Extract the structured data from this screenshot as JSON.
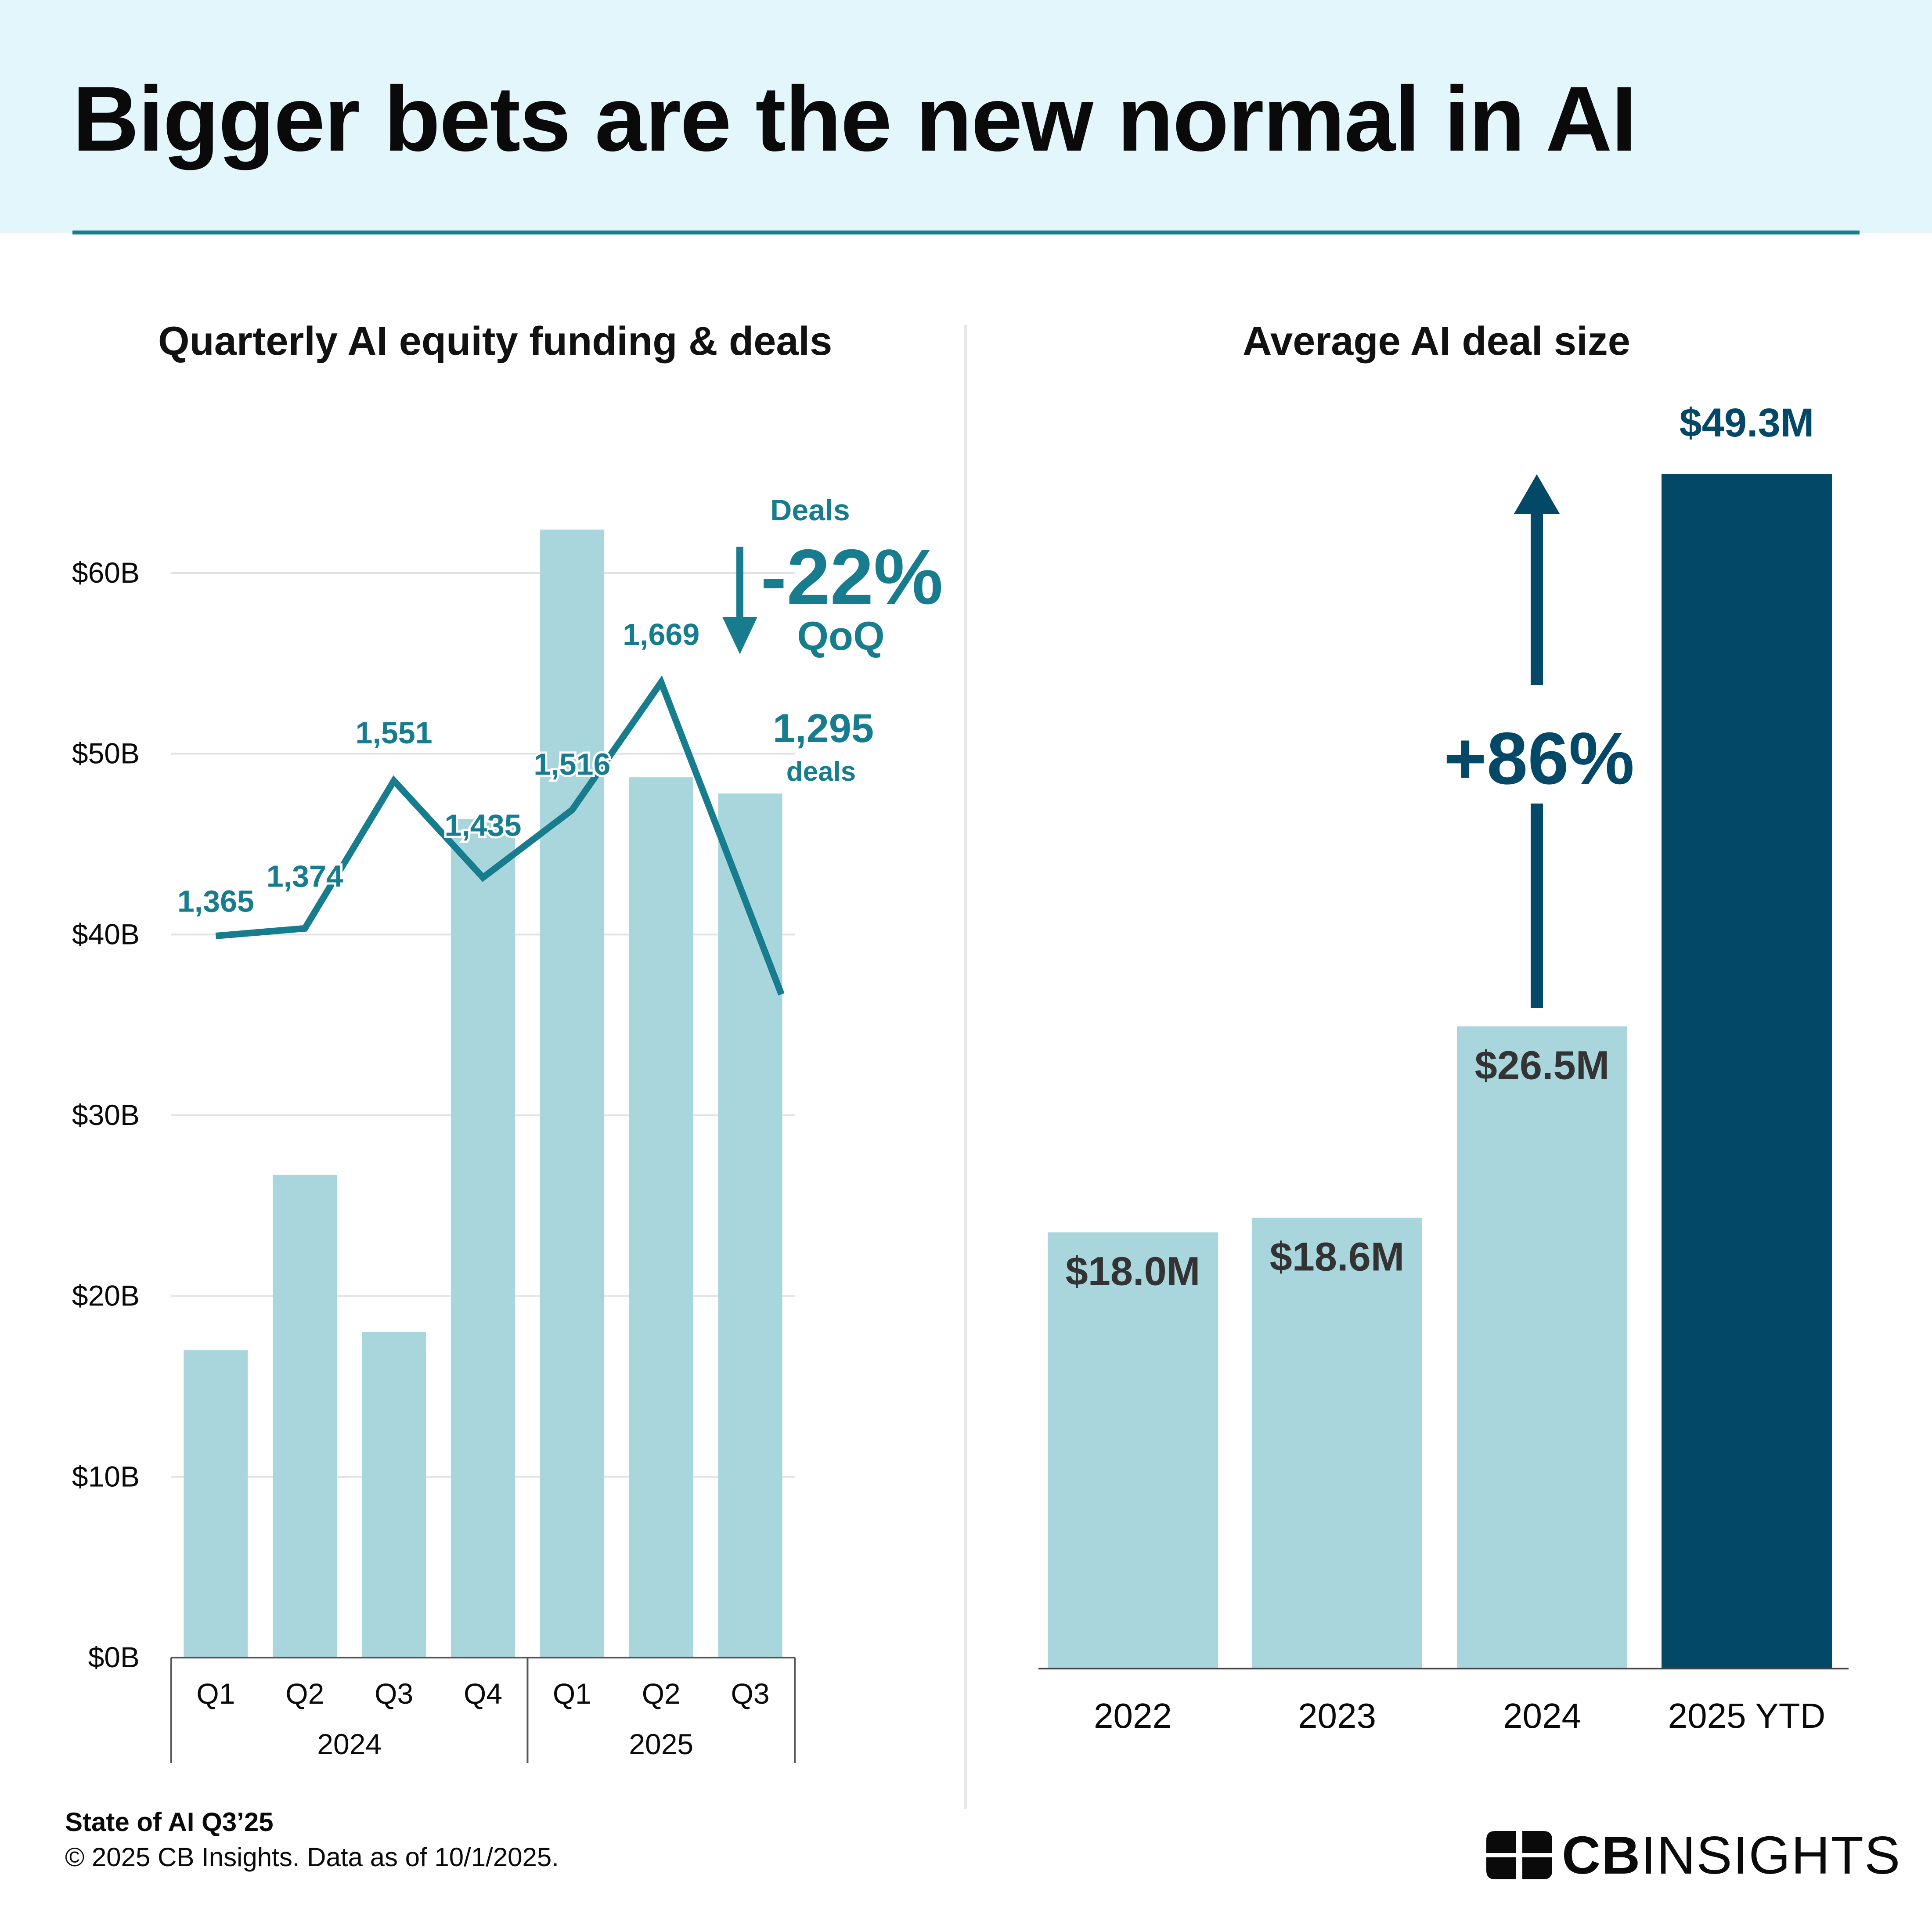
{
  "header": {
    "title": "Bigger bets are the new normal in AI"
  },
  "colors": {
    "bar_light": "#a9d5dd",
    "bar_dark": "#034866",
    "line": "#167c8e",
    "header_bg": "#e3f6fb",
    "text_dark": "#0a0a0a",
    "label_gray": "#333333",
    "grid": "#e2e2e2"
  },
  "chart_data": [
    {
      "type": "bar",
      "title": "Quarterly AI equity funding & deals",
      "categories": [
        "Q1",
        "Q2",
        "Q3",
        "Q4",
        "Q1",
        "Q2",
        "Q3"
      ],
      "groups": [
        {
          "label": "2024",
          "categories": [
            "Q1",
            "Q2",
            "Q3",
            "Q4"
          ]
        },
        {
          "label": "2025",
          "categories": [
            "Q1",
            "Q2",
            "Q3"
          ]
        }
      ],
      "series": [
        {
          "values": [
            17.0,
            26.7,
            18.0,
            46.4,
            62.4,
            48.7,
            47.8
          ],
          "unit": "$B"
        },
        {
          "name": "Deals",
          "type": "line",
          "axis": "secondary",
          "values": [
            1365,
            1374,
            1551,
            1435,
            1516,
            1669,
            1295
          ],
          "labels": [
            "1,365",
            "1,374",
            "1,551",
            "1,435",
            "1,516",
            "1,669",
            "1,295"
          ]
        }
      ],
      "yticks": [
        "$0B",
        "$10B",
        "$20B",
        "$30B",
        "$40B",
        "$50B",
        "$60B"
      ],
      "ylim": [
        0,
        60
      ],
      "secondary_ylim": [
        500,
        1800
      ],
      "grid": true,
      "annotation": {
        "label": "Deals",
        "change": "-22%",
        "period": "QoQ",
        "last_unit": "deals"
      }
    },
    {
      "type": "bar",
      "title": "Average AI deal size",
      "categories": [
        "2022",
        "2023",
        "2024",
        "2025 YTD"
      ],
      "series": [
        {
          "values": [
            18.0,
            18.6,
            26.5,
            49.3
          ],
          "labels": [
            "$18.0M",
            "$18.6M",
            "$26.5M",
            "$49.3M"
          ],
          "unit": "$M"
        }
      ],
      "ylim": [
        0,
        52
      ],
      "grid": false,
      "highlight_index": 3,
      "annotation": {
        "change": "+86%"
      }
    }
  ],
  "footer": {
    "source": "State of AI Q3’25",
    "copyright": "© 2025 CB Insights. Data as of 10/1/2025.",
    "brand_bold": "CB",
    "brand_light": "INSIGHTS"
  }
}
